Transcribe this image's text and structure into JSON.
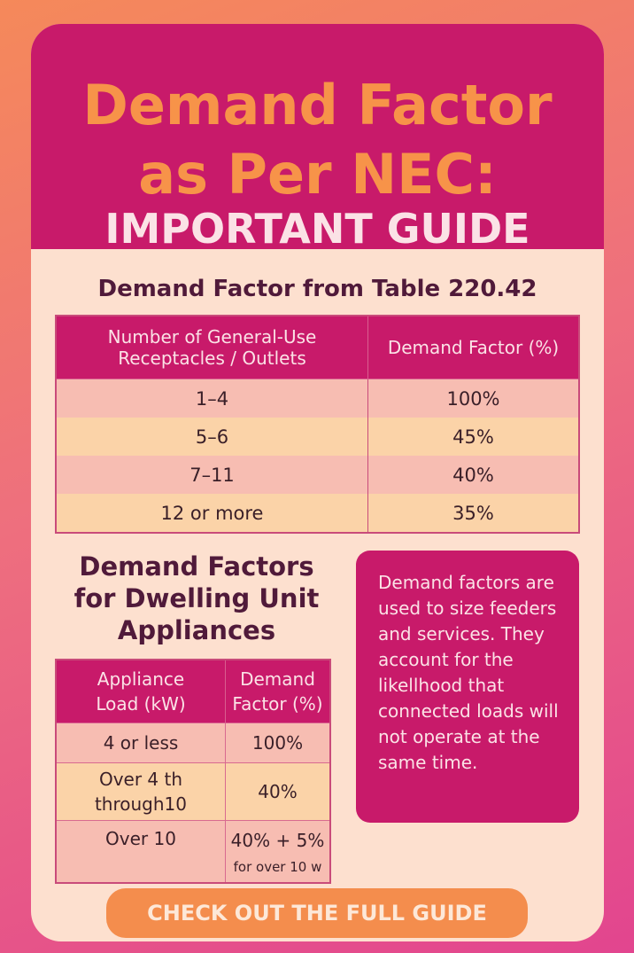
{
  "header": {
    "title_line1": "Demand Factor",
    "title_line2": "as Per NEC:",
    "subtitle": "IMPORTANT GUIDE"
  },
  "table1": {
    "title": "Demand Factor from Table 220.42",
    "col1_line1": "Number of General-Use",
    "col1_line2": "Receptacles / Outlets",
    "col2": "Demand Factor (%)",
    "rows": [
      {
        "count": "1–4",
        "factor": "100%"
      },
      {
        "count": "5–6",
        "factor": "45%"
      },
      {
        "count": "7–11",
        "factor": "40%"
      },
      {
        "count": "12 or more",
        "factor": "35%"
      }
    ]
  },
  "table2": {
    "title_line1": "Demand Factors",
    "title_line2": "for Dwelling Unit",
    "title_line3": "Appliances",
    "col1_line1": "Appliance",
    "col1_line2": "Load (kW)",
    "col2_line1": "Demand",
    "col2_line2": "Factor (%)",
    "rows": [
      {
        "load_line1": "4 or less",
        "load_line2": "",
        "factor_line1": "100%",
        "factor_line2": ""
      },
      {
        "load_line1": "Over 4 th",
        "load_line2": "through10",
        "factor_line1": "40%",
        "factor_line2": ""
      },
      {
        "load_line1": "Over 10",
        "load_line2": "",
        "factor_line1": "40% + 5%",
        "factor_line2": "for over 10 w"
      }
    ]
  },
  "note": {
    "text": "Demand factors are used to size feeders and services. They account for the likellhood that connected loads will not operate at the same time."
  },
  "cta": {
    "label": "CHECK OUT THE FULL GUIDE"
  }
}
